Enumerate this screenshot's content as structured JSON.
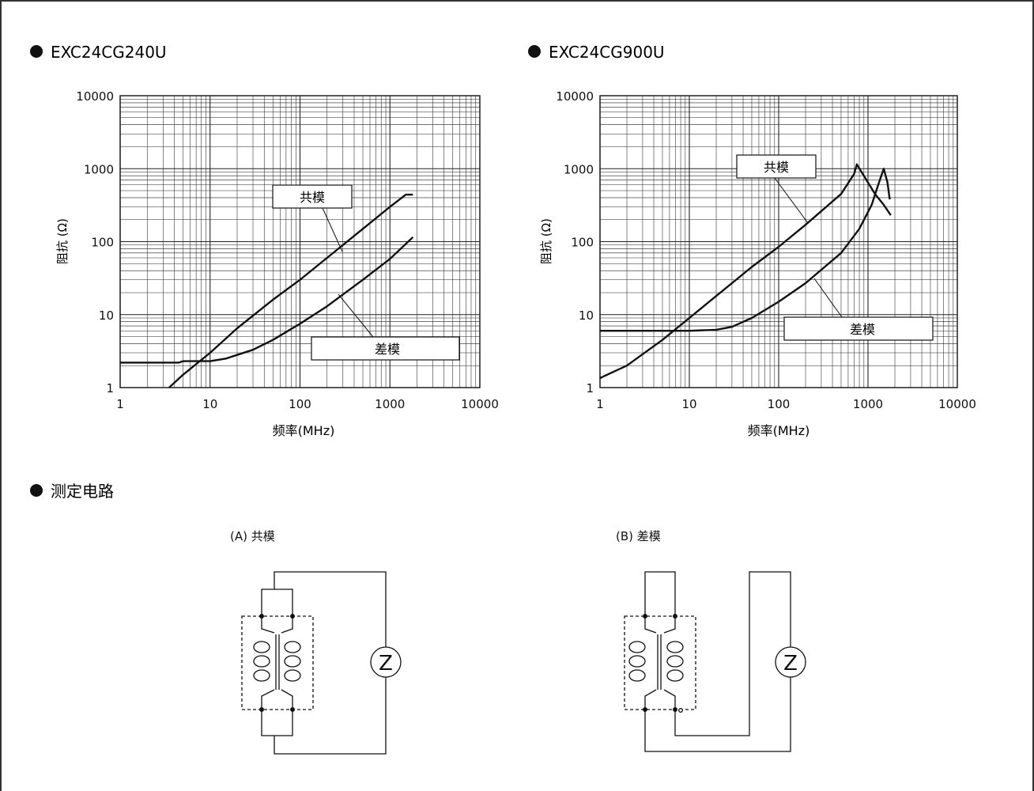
{
  "sections": {
    "chart1_heading": "EXC24CG240U",
    "chart2_heading": "EXC24CG900U",
    "circuit_heading": "测定电路"
  },
  "circuits": {
    "a_label": "(A) 共模",
    "b_label": "(B) 差模",
    "meter_symbol": "Z"
  },
  "chart_data": [
    {
      "type": "line",
      "title": "EXC24CG240U",
      "xlabel": "频率(MHz)",
      "ylabel": "阻抗 (Ω)",
      "x_scale": "log",
      "y_scale": "log",
      "xlim": [
        1,
        10000
      ],
      "ylim": [
        1,
        10000
      ],
      "x_ticks": [
        "1",
        "10",
        "100",
        "1000",
        "10000"
      ],
      "y_ticks": [
        "1",
        "10",
        "100",
        "1000",
        "10000"
      ],
      "grid": true,
      "series": [
        {
          "name": "共模",
          "points": [
            [
              3.5,
              1.0
            ],
            [
              5,
              1.5
            ],
            [
              10,
              3.0
            ],
            [
              20,
              6.5
            ],
            [
              50,
              16
            ],
            [
              100,
              30
            ],
            [
              200,
              60
            ],
            [
              500,
              150
            ],
            [
              1000,
              300
            ],
            [
              1500,
              440
            ],
            [
              1800,
              440
            ]
          ]
        },
        {
          "name": "差模",
          "points": [
            [
              1,
              2.2
            ],
            [
              4.5,
              2.2
            ],
            [
              5,
              2.3
            ],
            [
              10,
              2.3
            ],
            [
              15,
              2.5
            ],
            [
              20,
              2.8
            ],
            [
              30,
              3.3
            ],
            [
              50,
              4.5
            ],
            [
              100,
              7.5
            ],
            [
              200,
              13
            ],
            [
              500,
              30
            ],
            [
              1000,
              58
            ],
            [
              1800,
              115
            ]
          ]
        }
      ]
    },
    {
      "type": "line",
      "title": "EXC24CG900U",
      "xlabel": "频率(MHz)",
      "ylabel": "阻抗 (Ω)",
      "x_scale": "log",
      "y_scale": "log",
      "xlim": [
        1,
        10000
      ],
      "ylim": [
        1,
        10000
      ],
      "x_ticks": [
        "1",
        "10",
        "100",
        "1000",
        "10000"
      ],
      "y_ticks": [
        "1",
        "10",
        "100",
        "1000",
        "10000"
      ],
      "grid": true,
      "series": [
        {
          "name": "共模",
          "points": [
            [
              1,
              1.35
            ],
            [
              2,
              2.0
            ],
            [
              5,
              4.5
            ],
            [
              10,
              9
            ],
            [
              20,
              18
            ],
            [
              50,
              45
            ],
            [
              100,
              85
            ],
            [
              200,
              170
            ],
            [
              500,
              450
            ],
            [
              700,
              850
            ],
            [
              750,
              1150
            ],
            [
              900,
              800
            ],
            [
              1200,
              450
            ],
            [
              1500,
              320
            ],
            [
              1800,
              230
            ]
          ]
        },
        {
          "name": "差模",
          "points": [
            [
              1,
              6
            ],
            [
              10,
              6
            ],
            [
              20,
              6.2
            ],
            [
              30,
              6.8
            ],
            [
              50,
              9
            ],
            [
              100,
              15
            ],
            [
              200,
              27
            ],
            [
              500,
              70
            ],
            [
              800,
              150
            ],
            [
              1100,
              320
            ],
            [
              1300,
              600
            ],
            [
              1500,
              1000
            ],
            [
              1650,
              650
            ],
            [
              1750,
              380
            ]
          ]
        }
      ]
    }
  ]
}
